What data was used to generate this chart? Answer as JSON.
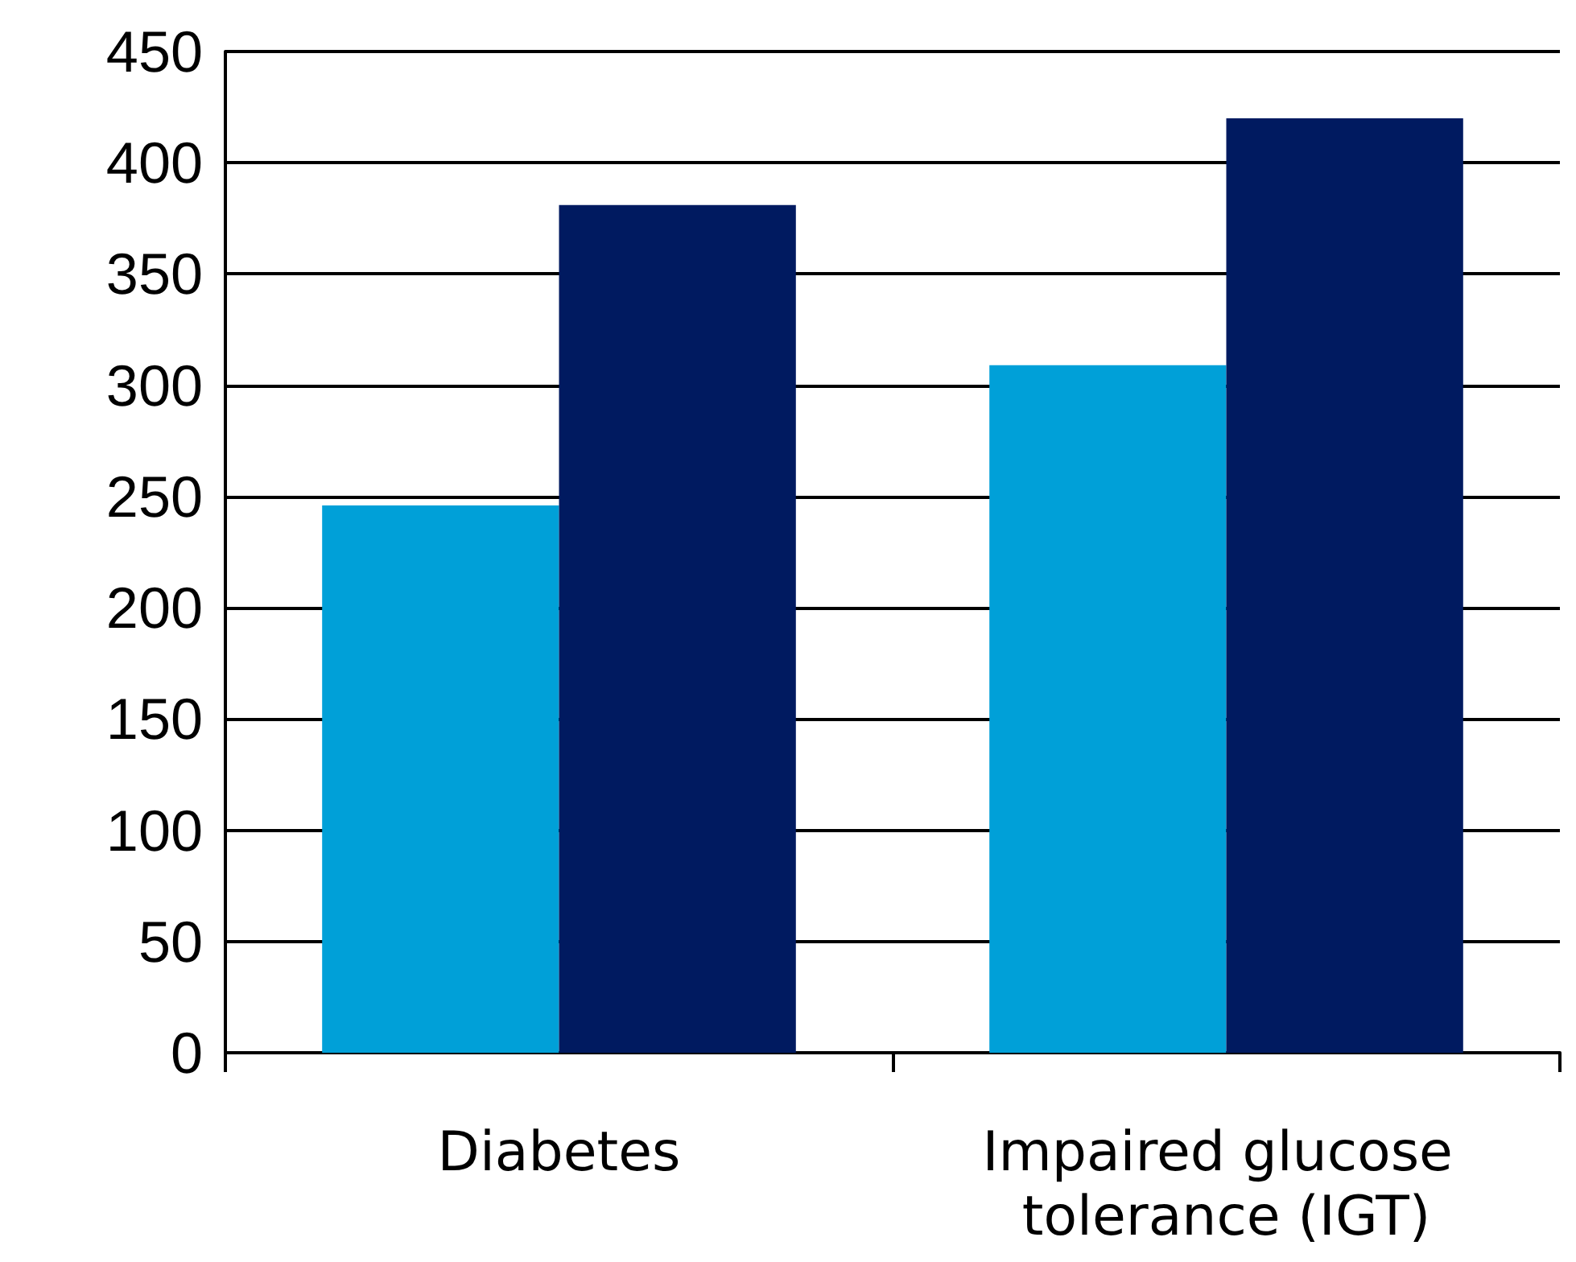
{
  "chart_data": {
    "type": "bar",
    "categories": [
      "Diabetes",
      "Impaired glucose tolerance (IGT)"
    ],
    "series": [
      {
        "color": "#00a0d8",
        "values": [
          246,
          309
        ]
      },
      {
        "color": "#001a60",
        "values": [
          381,
          420
        ]
      }
    ],
    "ylim": [
      0,
      450
    ],
    "yticks": [
      0,
      50,
      100,
      150,
      200,
      250,
      300,
      350,
      400,
      450
    ],
    "grid": "y"
  }
}
